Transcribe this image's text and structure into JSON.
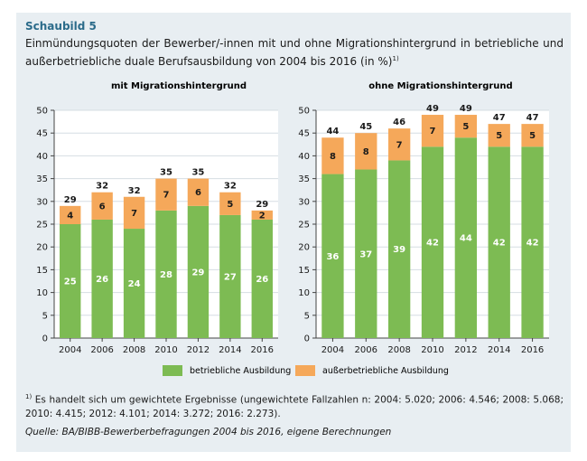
{
  "header": {
    "label": "Schaubild 5",
    "caption": "Einmündungsquoten der Bewerber/-innen mit und ohne Migrationshintergrund in betriebliche und außerbetriebliche duale Berufsausbildung von 2004 bis 2016 (in %)",
    "caption_note_marker": "1)"
  },
  "colors": {
    "green": "#7dbb53",
    "orange": "#f5a85a",
    "panel": "#e8eef2"
  },
  "chart_data": [
    {
      "type": "bar",
      "stacked": true,
      "title": "mit Migrationshintergrund",
      "categories": [
        "2004",
        "2006",
        "2008",
        "2010",
        "2012",
        "2014",
        "2016"
      ],
      "series": [
        {
          "name": "betriebliche Ausbildung",
          "values": [
            25,
            26,
            24,
            28,
            29,
            27,
            26
          ]
        },
        {
          "name": "außerbetriebliche Ausbildung",
          "values": [
            4,
            6,
            7,
            7,
            6,
            5,
            2
          ]
        }
      ],
      "totals": [
        29,
        32,
        32,
        35,
        35,
        32,
        29
      ],
      "ylim": [
        0,
        50
      ],
      "yticks": [
        0,
        5,
        10,
        15,
        20,
        25,
        30,
        35,
        40,
        45,
        50
      ]
    },
    {
      "type": "bar",
      "stacked": true,
      "title": "ohne Migrationshintergrund",
      "categories": [
        "2004",
        "2006",
        "2008",
        "2010",
        "2012",
        "2014",
        "2016"
      ],
      "series": [
        {
          "name": "betriebliche Ausbildung",
          "values": [
            36,
            37,
            39,
            42,
            44,
            42,
            42
          ]
        },
        {
          "name": "außerbetriebliche Ausbildung",
          "values": [
            8,
            8,
            7,
            7,
            5,
            5,
            5
          ]
        }
      ],
      "totals": [
        44,
        45,
        46,
        49,
        49,
        47,
        47
      ],
      "ylim": [
        0,
        50
      ],
      "yticks": [
        0,
        5,
        10,
        15,
        20,
        25,
        30,
        35,
        40,
        45,
        50
      ]
    }
  ],
  "legend": {
    "green_label": "betriebliche Ausbildung",
    "orange_label": "außerbetriebliche Ausbildung"
  },
  "footnote": {
    "marker": "1)",
    "text": "Es handelt sich um gewichtete Ergebnisse (ungewichtete Fallzahlen n: 2004: 5.020; 2006: 4.546; 2008: 5.068; 2010: 4.415; 2012: 4.101; 2014: 3.272; 2016: 2.273)."
  },
  "source": "Quelle: BA/BIBB-Bewerberbefragungen 2004 bis 2016, eigene Berechnungen"
}
